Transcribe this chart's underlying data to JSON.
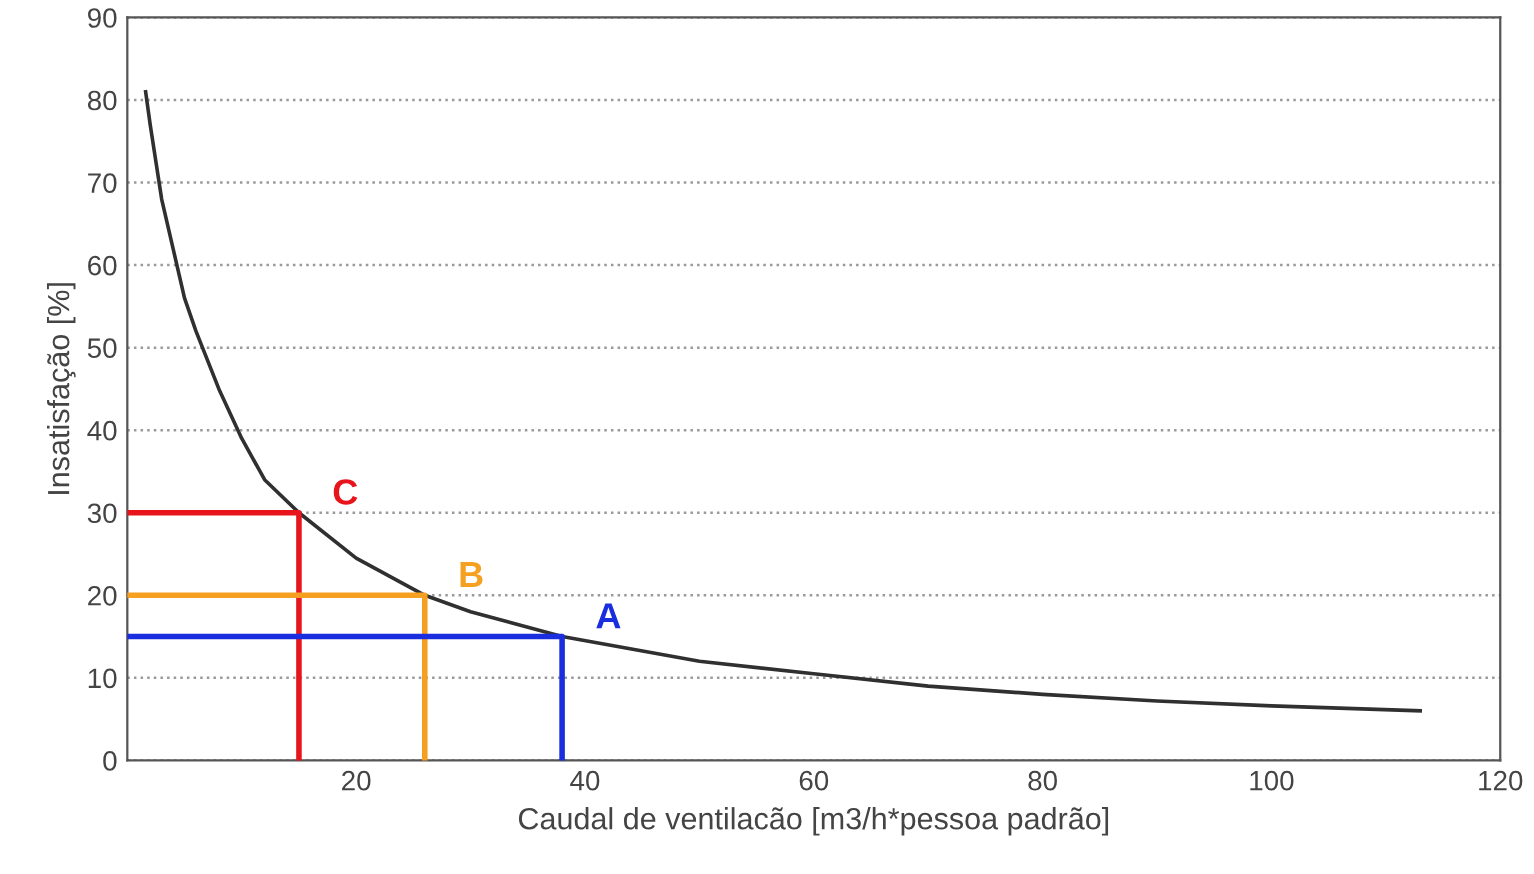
{
  "chart_data": {
    "type": "line",
    "xlabel": "Caudal de ventilacão [m3/h*pessoa padrão]",
    "ylabel": "Insatisfação [%]",
    "xlim": [
      0,
      120
    ],
    "xticks": [
      20,
      40,
      60,
      80,
      100,
      120
    ],
    "ylim": [
      0,
      90
    ],
    "yticks": [
      0,
      10,
      20,
      30,
      40,
      50,
      60,
      70,
      80,
      90
    ],
    "grid": "y",
    "series": [
      {
        "color": "#303030",
        "x": [
          1.6,
          2,
          3,
          4,
          5,
          6,
          8,
          10,
          12,
          15,
          20,
          26,
          30,
          38,
          50,
          60,
          70,
          80,
          90,
          100,
          113
        ],
        "values": [
          81,
          77,
          68,
          62,
          56,
          52,
          45,
          39,
          34,
          30,
          24.5,
          20,
          18,
          15,
          12,
          10.5,
          9,
          8,
          7.2,
          6.6,
          6
        ]
      },
      {
        "color": "#e8141c",
        "x": [
          0,
          15,
          15
        ],
        "values": [
          30,
          30,
          0
        ]
      },
      {
        "color": "#f5a020",
        "x": [
          0,
          26,
          26
        ],
        "values": [
          20,
          20,
          0
        ]
      },
      {
        "color": "#1a2ee0",
        "x": [
          0,
          38,
          38
        ],
        "values": [
          15,
          15,
          0
        ]
      }
    ],
    "annotations": [
      {
        "text": "C",
        "x": 15,
        "y": 30
      },
      {
        "text": "B",
        "x": 26,
        "y": 20
      },
      {
        "text": "A",
        "x": 38,
        "y": 15
      }
    ]
  }
}
